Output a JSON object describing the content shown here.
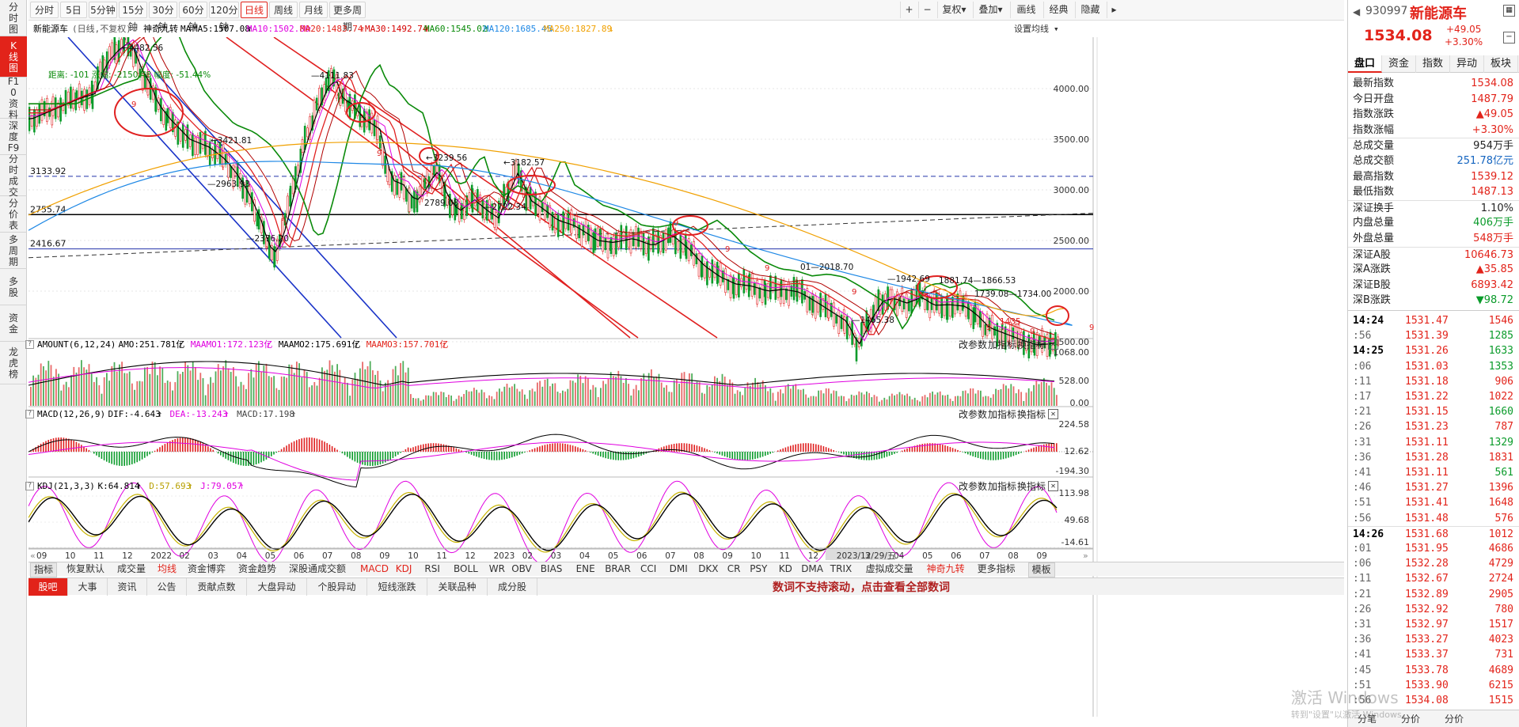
{
  "left_nav": [
    "分时图",
    "K线图",
    "F10资料",
    "深度F9",
    "分时成交",
    "分价表",
    "多周期",
    "多股",
    "资金",
    "龙虎榜"
  ],
  "period_tabs": [
    "分时",
    "5日",
    "5分钟",
    "15分钟",
    "30分钟",
    "60分钟",
    "120分钟",
    "日线",
    "周线",
    "月线",
    "更多周期"
  ],
  "active_period": "日线",
  "toolbar_right": [
    "+",
    "−",
    "复权",
    "叠加",
    "画线",
    "经典",
    "隐藏"
  ],
  "chart_header": {
    "name": "新能源车",
    "mode": "(日线,不复权)",
    "indicator": "神奇九转",
    "ma_label": "MA",
    "ma": [
      {
        "t": "MA5:1507.08",
        "c": "#000000"
      },
      {
        "t": "MA10:1502.80",
        "c": "#e000e0"
      },
      {
        "t": "MA20:1483.74",
        "c": "#e2231a"
      },
      {
        "t": "MA30:1492.74",
        "c": "#d40000"
      },
      {
        "t": "MA60:1545.02",
        "c": "#0a8a0a"
      },
      {
        "t": "MA120:1685.45",
        "c": "#1e88e5"
      },
      {
        "t": "MA250:1827.89",
        "c": "#f0a000"
      }
    ],
    "set_ma": "设置均线"
  },
  "price_axis": [
    "4000.00",
    "3500.00",
    "3000.00",
    "2500.00",
    "2000.00",
    "1500.00"
  ],
  "level_labels": [
    "3133.92",
    "2755.74",
    "2416.67"
  ],
  "annotations": {
    "high1": "←4482.56",
    "dist": "距离: -101  涨幅: -2150.48  幅度: -51.44%",
    "p4111": "—4111.83",
    "p3421": "←3421.81",
    "p2963": "—2963.93",
    "p2376": "—2376.20",
    "p3239": "←3239.56",
    "p3182": "←3182.57",
    "p2722": "—2722.34",
    "p2789": "2789.08",
    "p2018": "01—2018.70",
    "p1942": "—1942.69",
    "p1881": "1881.74—1866.53",
    "p1734": "1739.08—1734.00",
    "p1465": "—1465.38",
    "p1435": "1435"
  },
  "amount_panel": {
    "title": "AMOUNT(6,12,24)",
    "vals": [
      {
        "t": "AMO:251.781亿",
        "c": "#000"
      },
      {
        "t": "MAAMO1:172.123亿",
        "c": "#e000e0"
      },
      {
        "t": "MAAMO2:175.691亿",
        "c": "#000"
      },
      {
        "t": "MAAMO3:157.701亿",
        "c": "#e2231a"
      }
    ],
    "axis": [
      "1068.00",
      "528.00",
      "0.00"
    ]
  },
  "macd_panel": {
    "title": "MACD(12,26,9)",
    "vals": [
      {
        "t": "DIF:-4.643",
        "c": "#000"
      },
      {
        "t": "DEA:-13.243",
        "c": "#e000e0"
      },
      {
        "t": "MACD:17.198",
        "c": "#444"
      }
    ],
    "axis": [
      "224.58",
      "12.62",
      "-194.30"
    ]
  },
  "kdj_panel": {
    "title": "KDJ(21,3,3)",
    "vals": [
      {
        "t": "K:64.814",
        "c": "#000"
      },
      {
        "t": "D:57.693",
        "c": "#b8a000"
      },
      {
        "t": "J:79.057",
        "c": "#e000e0"
      }
    ],
    "axis": [
      "113.98",
      "49.68",
      "-14.61"
    ]
  },
  "panel_buttons": [
    "改参数",
    "加指标",
    "换指标"
  ],
  "date_axis": [
    "09",
    "10",
    "11",
    "12",
    "2022",
    "02",
    "03",
    "04",
    "05",
    "06",
    "07",
    "08",
    "09",
    "10",
    "11",
    "12",
    "2023",
    "02",
    "03",
    "04",
    "05",
    "06",
    "07",
    "08",
    "09",
    "10",
    "11",
    "12",
    "2023/12/29/五",
    "3",
    "04",
    "05",
    "06",
    "07",
    "08",
    "09"
  ],
  "indicator_tabs": [
    "指标",
    "恢复默认",
    "成交量",
    "均线",
    "资金博弈",
    "资金趋势",
    "深股通成交额",
    "MACD",
    "KDJ",
    "RSI",
    "BOLL",
    "WR",
    "OBV",
    "BIAS",
    "ENE",
    "BRAR",
    "CCI",
    "DMI",
    "DKX",
    "CR",
    "PSY",
    "KD",
    "DMA",
    "TRIX",
    "虚拟成交量",
    "神奇九转",
    "更多指标",
    "模板"
  ],
  "bottom_tabs": [
    "股吧",
    "大事",
    "资讯",
    "公告",
    "贡献点数",
    "大盘异动",
    "个股异动",
    "短线涨跌",
    "关联品种",
    "成分股"
  ],
  "ticker": "数词不支持滚动，点击查看全部数词",
  "right": {
    "code": "930997",
    "name": "新能源车",
    "price": "1534.08",
    "chg": "+49.05",
    "pct": "+3.30%",
    "tabs": [
      "盘口",
      "资金",
      "指数",
      "异动",
      "板块"
    ],
    "rows": [
      {
        "k": "最新指数",
        "v": "1534.08",
        "c": "red"
      },
      {
        "k": "今日开盘",
        "v": "1487.79",
        "c": "red"
      },
      {
        "k": "指数涨跌",
        "v": "▲49.05",
        "c": "red"
      },
      {
        "k": "指数涨幅",
        "v": "+3.30%",
        "c": "red"
      },
      {
        "k": "总成交量",
        "v": "954万手",
        "c": ""
      },
      {
        "k": "总成交额",
        "v": "251.78亿元",
        "c": "blu"
      },
      {
        "k": "最高指数",
        "v": "1539.12",
        "c": "red"
      },
      {
        "k": "最低指数",
        "v": "1487.13",
        "c": "red"
      },
      {
        "k": "深证换手",
        "v": "1.10%",
        "c": ""
      },
      {
        "k": "内盘总量",
        "v": "406万手",
        "c": "grn"
      },
      {
        "k": "外盘总量",
        "v": "548万手",
        "c": "red"
      },
      {
        "k": "深证A股",
        "v": "10646.73",
        "c": "red"
      },
      {
        "k": "深A涨跌",
        "v": "▲35.85",
        "c": "red"
      },
      {
        "k": "深证B股",
        "v": "6893.42",
        "c": "red"
      },
      {
        "k": "深B涨跌",
        "v": "▼98.72",
        "c": "grn"
      }
    ],
    "ticks": [
      {
        "t": "14:24",
        "p": "1531.47",
        "q": "1546",
        "qc": "red"
      },
      {
        "t": ":56",
        "p": "1531.39",
        "q": "1285",
        "qc": "grn"
      },
      {
        "t": "14:25",
        "p": "1531.26",
        "q": "1633",
        "qc": "grn"
      },
      {
        "t": ":06",
        "p": "1531.03",
        "q": "1353",
        "qc": "grn"
      },
      {
        "t": ":11",
        "p": "1531.18",
        "q": "906",
        "qc": "red"
      },
      {
        "t": ":17",
        "p": "1531.22",
        "q": "1022",
        "qc": "red"
      },
      {
        "t": ":21",
        "p": "1531.15",
        "q": "1660",
        "qc": "grn"
      },
      {
        "t": ":26",
        "p": "1531.23",
        "q": "787",
        "qc": "red"
      },
      {
        "t": ":31",
        "p": "1531.11",
        "q": "1329",
        "qc": "grn"
      },
      {
        "t": ":36",
        "p": "1531.28",
        "q": "1831",
        "qc": "red"
      },
      {
        "t": ":41",
        "p": "1531.11",
        "q": "561",
        "qc": "grn"
      },
      {
        "t": ":46",
        "p": "1531.27",
        "q": "1396",
        "qc": "red"
      },
      {
        "t": ":51",
        "p": "1531.41",
        "q": "1648",
        "qc": "red"
      },
      {
        "t": ":56",
        "p": "1531.48",
        "q": "576",
        "qc": "red"
      },
      {
        "t": "14:26",
        "p": "1531.68",
        "q": "1012",
        "qc": "red"
      },
      {
        "t": ":01",
        "p": "1531.95",
        "q": "4686",
        "qc": "red"
      },
      {
        "t": ":06",
        "p": "1532.28",
        "q": "4729",
        "qc": "red"
      },
      {
        "t": ":11",
        "p": "1532.67",
        "q": "2724",
        "qc": "red"
      },
      {
        "t": ":21",
        "p": "1532.89",
        "q": "2905",
        "qc": "red"
      },
      {
        "t": ":26",
        "p": "1532.92",
        "q": "780",
        "qc": "red"
      },
      {
        "t": ":31",
        "p": "1532.97",
        "q": "1517",
        "qc": "red"
      },
      {
        "t": ":36",
        "p": "1533.27",
        "q": "4023",
        "qc": "red"
      },
      {
        "t": ":41",
        "p": "1533.37",
        "q": "731",
        "qc": "red"
      },
      {
        "t": ":45",
        "p": "1533.78",
        "q": "4689",
        "qc": "red"
      },
      {
        "t": ":51",
        "p": "1533.90",
        "q": "6215",
        "qc": "red"
      },
      {
        "t": ":56",
        "p": "1534.08",
        "q": "1515",
        "qc": "red"
      }
    ],
    "bottom": [
      "分笔",
      "分价",
      "分价"
    ],
    "watermark1": "激活 Windows",
    "watermark2": "转到\"设置\"以激活 Windows。"
  }
}
